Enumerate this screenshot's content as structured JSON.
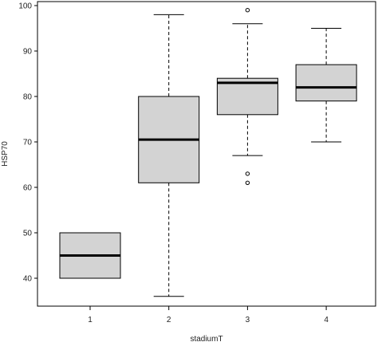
{
  "chart_data": {
    "type": "boxplot",
    "title": "",
    "xlabel": "stadiumT",
    "ylabel": "HSP70",
    "categories": [
      "1",
      "2",
      "3",
      "4"
    ],
    "yticks": [
      "40",
      "50",
      "60",
      "70",
      "80",
      "90",
      "100"
    ],
    "ylim": [
      35,
      101
    ],
    "grid": false,
    "boxes": [
      {
        "category": "1",
        "min": 40,
        "q1": 40,
        "median": 45,
        "q3": 50,
        "max": 50,
        "outliers": []
      },
      {
        "category": "2",
        "min": 36,
        "q1": 61,
        "median": 70.5,
        "q3": 80,
        "max": 98,
        "outliers": []
      },
      {
        "category": "3",
        "min": 67,
        "q1": 76,
        "median": 83,
        "q3": 84,
        "max": 96,
        "outliers": [
          99,
          63,
          61
        ]
      },
      {
        "category": "4",
        "min": 70,
        "q1": 79,
        "median": 82,
        "q3": 87,
        "max": 95,
        "outliers": []
      }
    ],
    "colors": {
      "box_fill": "#d3d3d3",
      "stroke": "#000000"
    }
  }
}
